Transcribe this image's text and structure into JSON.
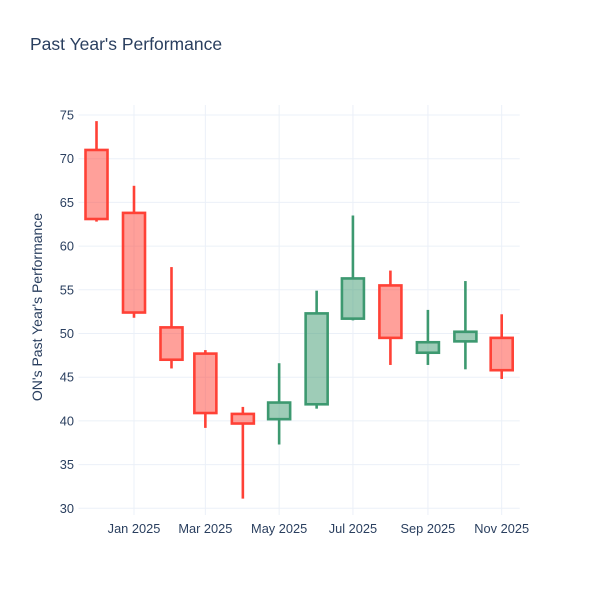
{
  "page": {
    "title": "Past Year's Performance"
  },
  "chart_data": {
    "type": "candlestick",
    "title": "Past Year's Performance",
    "xlabel": "",
    "ylabel": "ON's Past Year's Performance",
    "ylim": [
      29.2,
      76.1
    ],
    "yticks": [
      30,
      35,
      40,
      45,
      50,
      55,
      60,
      65,
      70,
      75
    ],
    "grid": true,
    "legend": "none",
    "colors": {
      "increasing_line": "#3D9970",
      "increasing_fill": "rgba(61,153,112,0.5)",
      "decreasing_line": "#FF4136",
      "decreasing_fill": "rgba(255,65,54,0.5)",
      "text": "#2a3f5f",
      "gridline": "#ebf0f8",
      "background": "#ffffff"
    },
    "xticks": [
      {
        "label": "Jan 2025",
        "day": 0
      },
      {
        "label": "Mar 2025",
        "day": 59
      },
      {
        "label": "May 2025",
        "day": 120
      },
      {
        "label": "Jul 2025",
        "day": 181
      },
      {
        "label": "Sep 2025",
        "day": 243
      },
      {
        "label": "Nov 2025",
        "day": 304
      }
    ],
    "candles": [
      {
        "month": "Dec 2024",
        "day": -31,
        "open": 71.0,
        "high": 74.3,
        "low": 62.8,
        "close": 63.1
      },
      {
        "month": "Jan 2025",
        "day": 0,
        "open": 63.8,
        "high": 66.9,
        "low": 51.8,
        "close": 52.4
      },
      {
        "month": "Feb 2025",
        "day": 31,
        "open": 50.7,
        "high": 57.6,
        "low": 46.0,
        "close": 47.0
      },
      {
        "month": "Mar 2025",
        "day": 59,
        "open": 47.7,
        "high": 48.1,
        "low": 39.2,
        "close": 40.9
      },
      {
        "month": "Apr 2025",
        "day": 90,
        "open": 40.8,
        "high": 41.6,
        "low": 31.1,
        "close": 39.7
      },
      {
        "month": "May 2025",
        "day": 120,
        "open": 40.2,
        "high": 46.6,
        "low": 37.3,
        "close": 42.1
      },
      {
        "month": "Jun 2025",
        "day": 151,
        "open": 41.9,
        "high": 54.9,
        "low": 41.4,
        "close": 52.3
      },
      {
        "month": "Jul 2025",
        "day": 181,
        "open": 51.7,
        "high": 63.5,
        "low": 51.5,
        "close": 56.3
      },
      {
        "month": "Aug 2025",
        "day": 212,
        "open": 55.5,
        "high": 57.2,
        "low": 46.4,
        "close": 49.5
      },
      {
        "month": "Sep 2025",
        "day": 243,
        "open": 47.8,
        "high": 52.7,
        "low": 46.4,
        "close": 49.0
      },
      {
        "month": "Oct 2025",
        "day": 274,
        "open": 49.1,
        "high": 56.0,
        "low": 45.9,
        "close": 50.2
      },
      {
        "month": "Nov 2025",
        "day": 304,
        "open": 49.5,
        "high": 52.2,
        "low": 44.8,
        "close": 45.8
      }
    ]
  }
}
